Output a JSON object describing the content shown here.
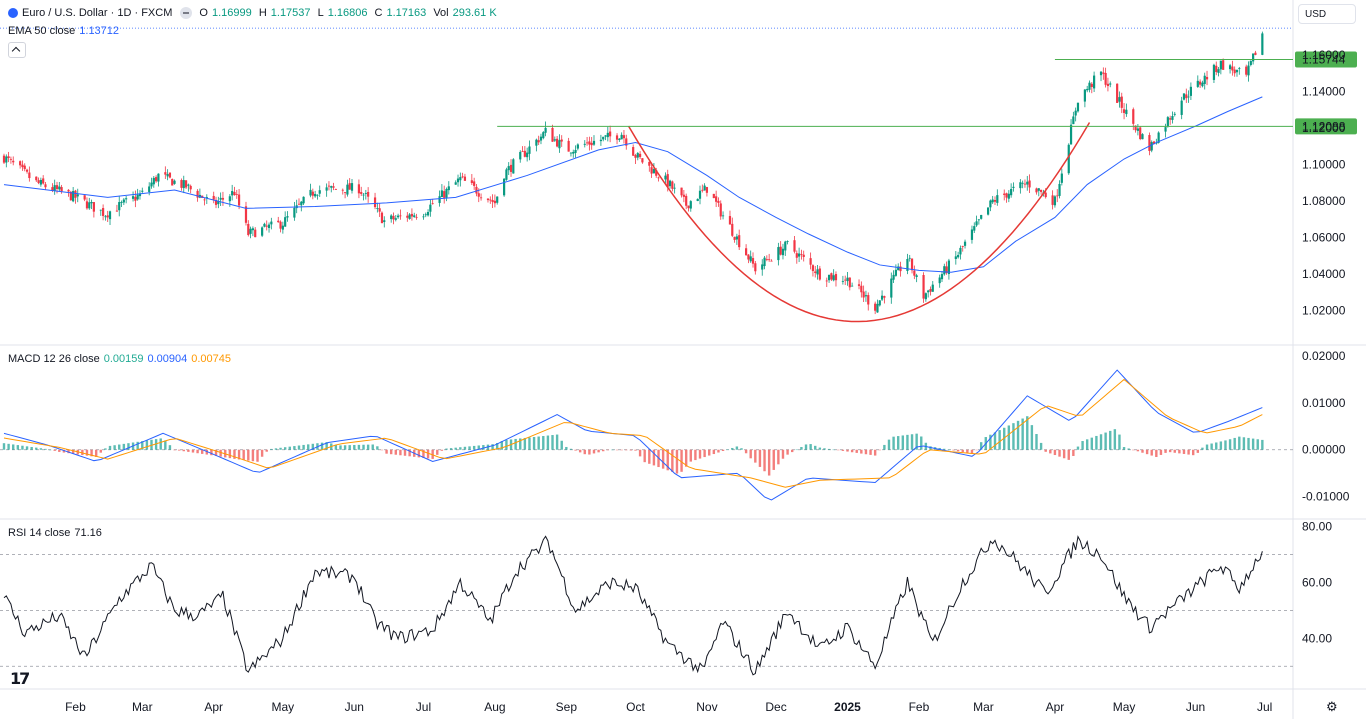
{
  "header": {
    "symbol_title": "Euro / U.S. Dollar · 1D · FXCM",
    "o_label": "O",
    "o_value": "1.16999",
    "h_label": "H",
    "h_value": "1.17537",
    "l_label": "L",
    "l_value": "1.16806",
    "c_label": "C",
    "c_value": "1.17163",
    "vol_label": "Vol",
    "vol_value": "293.61 K",
    "currency": "USD"
  },
  "ema": {
    "label": "EMA 50 close",
    "value": "1.13712",
    "color": "#2962ff"
  },
  "macd": {
    "label": "MACD 12 26 close",
    "hist_value": "0.00159",
    "macd_value": "0.00904",
    "signal_value": "0.00745",
    "hist_color": "#26a69a",
    "macd_color": "#2962ff",
    "signal_color": "#ff9800"
  },
  "rsi": {
    "label": "RSI 14 close",
    "value": "71.16"
  },
  "colors": {
    "up": "#089981",
    "down": "#f23645",
    "cup": "#e53935",
    "level": "#4caf50",
    "grid_dash": "#9598a1"
  },
  "chart_data": [
    {
      "type": "candlestick",
      "title": "Euro / U.S. Dollar · 1D · FXCM",
      "y_ticks": [
        "1.02000",
        "1.04000",
        "1.06000",
        "1.08000",
        "1.10000",
        "1.12000",
        "1.14000",
        "1.16000"
      ],
      "x_ticks": [
        "Feb",
        "Mar",
        "Apr",
        "May",
        "Jun",
        "Jul",
        "Aug",
        "Sep",
        "Oct",
        "Nov",
        "Dec",
        "2025",
        "Feb",
        "Mar",
        "Apr",
        "May",
        "Jun",
        "Jul"
      ],
      "ylim": [
        1.005,
        1.178
      ],
      "levels": [
        {
          "label": "1.15744",
          "value": 1.15744
        },
        {
          "label": "1.12088",
          "value": 1.12088
        }
      ],
      "last_close": 1.17163,
      "close_path": [
        [
          "2024-01-01",
          1.104
        ],
        [
          "2024-01-15",
          1.09
        ],
        [
          "2024-02-01",
          1.082
        ],
        [
          "2024-02-14",
          1.073
        ],
        [
          "2024-03-01",
          1.084
        ],
        [
          "2024-03-08",
          1.094
        ],
        [
          "2024-03-20",
          1.088
        ],
        [
          "2024-04-01",
          1.078
        ],
        [
          "2024-04-10",
          1.085
        ],
        [
          "2024-04-16",
          1.062
        ],
        [
          "2024-05-01",
          1.068
        ],
        [
          "2024-05-15",
          1.086
        ],
        [
          "2024-06-03",
          1.087
        ],
        [
          "2024-06-14",
          1.069
        ],
        [
          "2024-07-01",
          1.074
        ],
        [
          "2024-07-17",
          1.092
        ],
        [
          "2024-08-01",
          1.079
        ],
        [
          "2024-08-05",
          1.095
        ],
        [
          "2024-08-23",
          1.118
        ],
        [
          "2024-09-01",
          1.108
        ],
        [
          "2024-09-25",
          1.117
        ],
        [
          "2024-10-01",
          1.105
        ],
        [
          "2024-10-15",
          1.09
        ],
        [
          "2024-10-23",
          1.078
        ],
        [
          "2024-11-01",
          1.087
        ],
        [
          "2024-11-08",
          1.072
        ],
        [
          "2024-11-22",
          1.043
        ],
        [
          "2024-12-06",
          1.056
        ],
        [
          "2024-12-20",
          1.04
        ],
        [
          "2025-01-01",
          1.037
        ],
        [
          "2025-01-13",
          1.022
        ],
        [
          "2025-01-27",
          1.049
        ],
        [
          "2025-02-03",
          1.028
        ],
        [
          "2025-02-17",
          1.049
        ],
        [
          "2025-03-05",
          1.08
        ],
        [
          "2025-03-20",
          1.09
        ],
        [
          "2025-04-01",
          1.08
        ],
        [
          "2025-04-11",
          1.136
        ],
        [
          "2025-04-21",
          1.15
        ],
        [
          "2025-05-01",
          1.13
        ],
        [
          "2025-05-12",
          1.109
        ],
        [
          "2025-05-26",
          1.136
        ],
        [
          "2025-06-12",
          1.155
        ],
        [
          "2025-06-23",
          1.148
        ],
        [
          "2025-06-30",
          1.1716
        ]
      ],
      "ema50_path": [
        [
          "2024-01-01",
          1.089
        ],
        [
          "2024-02-15",
          1.082
        ],
        [
          "2024-03-15",
          1.086
        ],
        [
          "2024-04-15",
          1.076
        ],
        [
          "2024-05-15",
          1.077
        ],
        [
          "2024-06-15",
          1.079
        ],
        [
          "2024-07-15",
          1.082
        ],
        [
          "2024-08-15",
          1.094
        ],
        [
          "2024-09-15",
          1.108
        ],
        [
          "2024-10-01",
          1.112
        ],
        [
          "2024-10-15",
          1.107
        ],
        [
          "2024-11-01",
          1.094
        ],
        [
          "2024-11-15",
          1.082
        ],
        [
          "2024-12-01",
          1.071
        ],
        [
          "2024-12-15",
          1.062
        ],
        [
          "2025-01-01",
          1.052
        ],
        [
          "2025-01-15",
          1.045
        ],
        [
          "2025-02-01",
          1.042
        ],
        [
          "2025-02-15",
          1.041
        ],
        [
          "2025-03-01",
          1.044
        ],
        [
          "2025-03-15",
          1.058
        ],
        [
          "2025-04-01",
          1.071
        ],
        [
          "2025-04-15",
          1.089
        ],
        [
          "2025-05-01",
          1.103
        ],
        [
          "2025-05-15",
          1.112
        ],
        [
          "2025-06-01",
          1.121
        ],
        [
          "2025-06-15",
          1.129
        ],
        [
          "2025-06-30",
          1.137
        ]
      ]
    },
    {
      "type": "line",
      "title": "MACD 12 26 close",
      "y_ticks": [
        "0.02000",
        "0.01000",
        "0.00000",
        "-0.01000"
      ],
      "ylim": [
        -0.0135,
        0.0215
      ],
      "series": [
        {
          "name": "MACD",
          "points": [
            [
              "2024-01-01",
              0.0035
            ],
            [
              "2024-01-20",
              0.001
            ],
            [
              "2024-02-10",
              -0.0025
            ],
            [
              "2024-03-10",
              0.0035
            ],
            [
              "2024-04-01",
              -0.001
            ],
            [
              "2024-04-20",
              -0.005
            ],
            [
              "2024-05-20",
              0.0015
            ],
            [
              "2024-06-10",
              0.003
            ],
            [
              "2024-07-05",
              -0.0025
            ],
            [
              "2024-08-01",
              0.001
            ],
            [
              "2024-08-28",
              0.0075
            ],
            [
              "2024-09-10",
              0.004
            ],
            [
              "2024-10-01",
              0.003
            ],
            [
              "2024-10-20",
              -0.006
            ],
            [
              "2024-11-15",
              -0.005
            ],
            [
              "2024-11-28",
              -0.011
            ],
            [
              "2024-12-15",
              -0.006
            ],
            [
              "2025-01-13",
              -0.007
            ],
            [
              "2025-02-01",
              0.001
            ],
            [
              "2025-02-25",
              -0.0015
            ],
            [
              "2025-03-20",
              0.0115
            ],
            [
              "2025-04-08",
              0.006
            ],
            [
              "2025-04-28",
              0.017
            ],
            [
              "2025-05-15",
              0.008
            ],
            [
              "2025-06-01",
              0.0035
            ],
            [
              "2025-06-15",
              0.006
            ],
            [
              "2025-06-30",
              0.009
            ]
          ]
        },
        {
          "name": "Signal",
          "points": [
            [
              "2024-01-01",
              0.0025
            ],
            [
              "2024-01-25",
              0.0005
            ],
            [
              "2024-02-15",
              -0.002
            ],
            [
              "2024-03-15",
              0.0025
            ],
            [
              "2024-04-10",
              -0.0015
            ],
            [
              "2024-04-25",
              -0.004
            ],
            [
              "2024-05-25",
              0.0012
            ],
            [
              "2024-06-15",
              0.0025
            ],
            [
              "2024-07-10",
              -0.002
            ],
            [
              "2024-08-05",
              0.0005
            ],
            [
              "2024-09-01",
              0.006
            ],
            [
              "2024-09-20",
              0.0035
            ],
            [
              "2024-10-05",
              0.003
            ],
            [
              "2024-10-25",
              -0.004
            ],
            [
              "2024-11-20",
              -0.006
            ],
            [
              "2024-12-05",
              -0.008
            ],
            [
              "2024-12-20",
              -0.0065
            ],
            [
              "2025-01-20",
              -0.006
            ],
            [
              "2025-02-05",
              0.0
            ],
            [
              "2025-03-01",
              -0.001
            ],
            [
              "2025-03-28",
              0.0095
            ],
            [
              "2025-04-12",
              0.007
            ],
            [
              "2025-05-01",
              0.015
            ],
            [
              "2025-05-20",
              0.007
            ],
            [
              "2025-06-05",
              0.0035
            ],
            [
              "2025-06-20",
              0.005
            ],
            [
              "2025-06-30",
              0.0075
            ]
          ]
        }
      ]
    },
    {
      "type": "line",
      "title": "RSI 14 close",
      "y_ticks": [
        "80.00",
        "60.00",
        "40.00"
      ],
      "ylim": [
        24,
        82
      ],
      "bands": [
        70,
        50,
        30
      ],
      "series": [
        {
          "name": "RSI",
          "points": [
            [
              "2024-01-01",
              55
            ],
            [
              "2024-01-10",
              42
            ],
            [
              "2024-01-25",
              48
            ],
            [
              "2024-02-05",
              33
            ],
            [
              "2024-02-20",
              54
            ],
            [
              "2024-03-05",
              66
            ],
            [
              "2024-03-15",
              50
            ],
            [
              "2024-03-25",
              48
            ],
            [
              "2024-04-05",
              55
            ],
            [
              "2024-04-16",
              28
            ],
            [
              "2024-05-01",
              40
            ],
            [
              "2024-05-15",
              64
            ],
            [
              "2024-06-01",
              62
            ],
            [
              "2024-06-10",
              46
            ],
            [
              "2024-06-20",
              40
            ],
            [
              "2024-07-05",
              43
            ],
            [
              "2024-07-17",
              60
            ],
            [
              "2024-07-30",
              46
            ],
            [
              "2024-08-10",
              64
            ],
            [
              "2024-08-24",
              75
            ],
            [
              "2024-09-05",
              50
            ],
            [
              "2024-09-20",
              60
            ],
            [
              "2024-10-01",
              58
            ],
            [
              "2024-10-15",
              38
            ],
            [
              "2024-10-30",
              28
            ],
            [
              "2024-11-08",
              46
            ],
            [
              "2024-11-22",
              28
            ],
            [
              "2024-12-06",
              50
            ],
            [
              "2024-12-20",
              36
            ],
            [
              "2025-01-01",
              44
            ],
            [
              "2025-01-13",
              30
            ],
            [
              "2025-01-27",
              60
            ],
            [
              "2025-02-07",
              38
            ],
            [
              "2025-02-20",
              60
            ],
            [
              "2025-03-05",
              76
            ],
            [
              "2025-03-15",
              68
            ],
            [
              "2025-03-28",
              56
            ],
            [
              "2025-04-11",
              75
            ],
            [
              "2025-04-21",
              70
            ],
            [
              "2025-05-01",
              55
            ],
            [
              "2025-05-12",
              44
            ],
            [
              "2025-05-26",
              54
            ],
            [
              "2025-06-12",
              66
            ],
            [
              "2025-06-20",
              58
            ],
            [
              "2025-06-30",
              71.16
            ]
          ]
        }
      ]
    }
  ]
}
